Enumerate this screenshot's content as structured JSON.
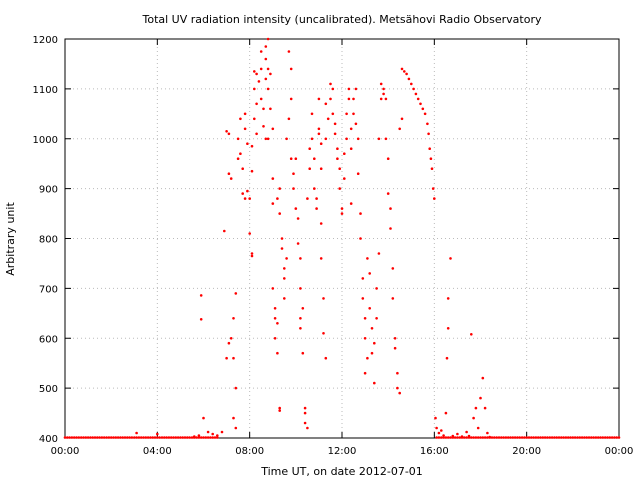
{
  "chart_data": {
    "type": "scatter",
    "title": "Total UV radiation intensity (uncalibrated). Metsähovi Radio Observatory",
    "xlabel": "Time UT, on date 2012-07-01",
    "ylabel": "Arbitrary unit",
    "xlim": [
      0,
      24
    ],
    "ylim": [
      400,
      1200
    ],
    "x_ticks": [
      0,
      4,
      8,
      12,
      16,
      20,
      24
    ],
    "x_tick_labels": [
      "00:00",
      "04:00",
      "08:00",
      "12:00",
      "16:00",
      "20:00",
      "00:00"
    ],
    "y_ticks": [
      400,
      500,
      600,
      700,
      800,
      900,
      1000,
      1100,
      1200
    ],
    "y_tick_labels": [
      "400",
      "500",
      "600",
      "700",
      "800",
      "900",
      "1000",
      "1100",
      "1200"
    ],
    "grid": true,
    "series_color": "#ff0000",
    "series": [
      {
        "points": [
          [
            3.1,
            410
          ],
          [
            4.0,
            408
          ],
          [
            5.6,
            403
          ],
          [
            5.8,
            405
          ],
          [
            5.9,
            638
          ],
          [
            5.9,
            686
          ],
          [
            6.0,
            440
          ],
          [
            6.2,
            412
          ],
          [
            6.4,
            408
          ],
          [
            6.6,
            405
          ],
          [
            6.8,
            412
          ],
          [
            6.9,
            815
          ],
          [
            7.0,
            1015
          ],
          [
            7.1,
            1010
          ],
          [
            7.0,
            560
          ],
          [
            7.1,
            590
          ],
          [
            7.2,
            600
          ],
          [
            7.1,
            930
          ],
          [
            7.2,
            920
          ],
          [
            7.3,
            560
          ],
          [
            7.3,
            640
          ],
          [
            7.4,
            690
          ],
          [
            7.4,
            500
          ],
          [
            7.3,
            440
          ],
          [
            7.4,
            420
          ],
          [
            7.5,
            1000
          ],
          [
            7.5,
            960
          ],
          [
            7.6,
            970
          ],
          [
            7.6,
            1040
          ],
          [
            7.7,
            890
          ],
          [
            7.7,
            940
          ],
          [
            7.8,
            880
          ],
          [
            7.8,
            1020
          ],
          [
            7.8,
            1050
          ],
          [
            7.9,
            990
          ],
          [
            7.9,
            895
          ],
          [
            8.0,
            880
          ],
          [
            8.0,
            810
          ],
          [
            8.1,
            770
          ],
          [
            8.1,
            765
          ],
          [
            8.1,
            935
          ],
          [
            8.1,
            985
          ],
          [
            8.2,
            1040
          ],
          [
            8.2,
            1100
          ],
          [
            8.2,
            1135
          ],
          [
            8.3,
            1130
          ],
          [
            8.3,
            1070
          ],
          [
            8.3,
            1010
          ],
          [
            8.4,
            1115
          ],
          [
            8.5,
            1175
          ],
          [
            8.5,
            1140
          ],
          [
            8.5,
            1080
          ],
          [
            8.6,
            1060
          ],
          [
            8.6,
            1025
          ],
          [
            8.7,
            1185
          ],
          [
            8.7,
            1160
          ],
          [
            8.7,
            1120
          ],
          [
            8.7,
            1000
          ],
          [
            8.8,
            1200
          ],
          [
            8.8,
            1140
          ],
          [
            8.8,
            1100
          ],
          [
            8.8,
            1000
          ],
          [
            8.9,
            1130
          ],
          [
            8.9,
            1060
          ],
          [
            9.0,
            1020
          ],
          [
            9.0,
            920
          ],
          [
            9.0,
            870
          ],
          [
            9.0,
            700
          ],
          [
            9.1,
            660
          ],
          [
            9.1,
            640
          ],
          [
            9.1,
            600
          ],
          [
            9.2,
            570
          ],
          [
            9.2,
            630
          ],
          [
            9.3,
            460
          ],
          [
            9.3,
            455
          ],
          [
            9.2,
            880
          ],
          [
            9.3,
            900
          ],
          [
            9.3,
            850
          ],
          [
            9.4,
            800
          ],
          [
            9.4,
            780
          ],
          [
            9.5,
            680
          ],
          [
            9.5,
            720
          ],
          [
            9.5,
            740
          ],
          [
            9.6,
            760
          ],
          [
            9.6,
            1000
          ],
          [
            9.7,
            1040
          ],
          [
            9.7,
            1175
          ],
          [
            9.8,
            1140
          ],
          [
            9.8,
            1080
          ],
          [
            9.8,
            960
          ],
          [
            9.9,
            930
          ],
          [
            9.9,
            900
          ],
          [
            10.0,
            960
          ],
          [
            10.0,
            860
          ],
          [
            10.1,
            840
          ],
          [
            10.1,
            790
          ],
          [
            10.2,
            760
          ],
          [
            10.2,
            700
          ],
          [
            10.2,
            640
          ],
          [
            10.2,
            620
          ],
          [
            10.3,
            570
          ],
          [
            10.3,
            660
          ],
          [
            10.4,
            450
          ],
          [
            10.4,
            460
          ],
          [
            10.4,
            430
          ],
          [
            10.5,
            420
          ],
          [
            10.5,
            880
          ],
          [
            10.6,
            940
          ],
          [
            10.6,
            980
          ],
          [
            10.7,
            1050
          ],
          [
            10.7,
            1000
          ],
          [
            10.8,
            960
          ],
          [
            10.8,
            900
          ],
          [
            10.9,
            880
          ],
          [
            10.9,
            860
          ],
          [
            11.0,
            1020
          ],
          [
            11.0,
            1080
          ],
          [
            11.0,
            1010
          ],
          [
            11.1,
            990
          ],
          [
            11.1,
            940
          ],
          [
            11.1,
            830
          ],
          [
            11.1,
            760
          ],
          [
            11.2,
            680
          ],
          [
            11.2,
            610
          ],
          [
            11.3,
            560
          ],
          [
            11.3,
            1000
          ],
          [
            11.3,
            1070
          ],
          [
            11.4,
            1040
          ],
          [
            11.5,
            1080
          ],
          [
            11.5,
            1110
          ],
          [
            11.6,
            1100
          ],
          [
            11.6,
            1050
          ],
          [
            11.7,
            1030
          ],
          [
            11.7,
            1010
          ],
          [
            11.8,
            980
          ],
          [
            11.8,
            960
          ],
          [
            11.9,
            940
          ],
          [
            11.9,
            900
          ],
          [
            12.0,
            850
          ],
          [
            12.0,
            860
          ],
          [
            12.1,
            970
          ],
          [
            12.1,
            920
          ],
          [
            12.2,
            1000
          ],
          [
            12.2,
            1050
          ],
          [
            12.3,
            1080
          ],
          [
            12.3,
            1100
          ],
          [
            12.4,
            1020
          ],
          [
            12.4,
            980
          ],
          [
            12.4,
            870
          ],
          [
            12.5,
            1050
          ],
          [
            12.5,
            1080
          ],
          [
            12.6,
            1100
          ],
          [
            12.6,
            1030
          ],
          [
            12.7,
            1000
          ],
          [
            12.7,
            930
          ],
          [
            12.8,
            850
          ],
          [
            12.8,
            800
          ],
          [
            12.9,
            720
          ],
          [
            12.9,
            680
          ],
          [
            13.0,
            640
          ],
          [
            13.0,
            600
          ],
          [
            13.0,
            530
          ],
          [
            13.1,
            560
          ],
          [
            13.1,
            760
          ],
          [
            13.2,
            730
          ],
          [
            13.2,
            660
          ],
          [
            13.3,
            620
          ],
          [
            13.3,
            570
          ],
          [
            13.4,
            510
          ],
          [
            13.4,
            590
          ],
          [
            13.5,
            640
          ],
          [
            13.5,
            700
          ],
          [
            13.6,
            770
          ],
          [
            13.6,
            1000
          ],
          [
            13.7,
            1080
          ],
          [
            13.7,
            1110
          ],
          [
            13.8,
            1100
          ],
          [
            13.8,
            1090
          ],
          [
            13.9,
            1080
          ],
          [
            13.9,
            1000
          ],
          [
            14.0,
            960
          ],
          [
            14.0,
            890
          ],
          [
            14.1,
            860
          ],
          [
            14.1,
            820
          ],
          [
            14.2,
            740
          ],
          [
            14.2,
            680
          ],
          [
            14.3,
            600
          ],
          [
            14.3,
            580
          ],
          [
            14.4,
            530
          ],
          [
            14.4,
            500
          ],
          [
            14.5,
            490
          ],
          [
            14.5,
            1020
          ],
          [
            14.6,
            1040
          ],
          [
            14.6,
            1140
          ],
          [
            14.7,
            1135
          ],
          [
            14.8,
            1130
          ],
          [
            14.9,
            1120
          ],
          [
            15.0,
            1110
          ],
          [
            15.1,
            1100
          ],
          [
            15.2,
            1090
          ],
          [
            15.3,
            1080
          ],
          [
            15.4,
            1070
          ],
          [
            15.5,
            1060
          ],
          [
            15.6,
            1050
          ],
          [
            15.7,
            1030
          ],
          [
            15.75,
            1010
          ],
          [
            15.8,
            980
          ],
          [
            15.85,
            960
          ],
          [
            15.9,
            940
          ],
          [
            15.95,
            900
          ],
          [
            16.0,
            880
          ],
          [
            16.05,
            440
          ],
          [
            16.1,
            420
          ],
          [
            16.2,
            410
          ],
          [
            16.3,
            415
          ],
          [
            16.4,
            405
          ],
          [
            16.5,
            450
          ],
          [
            16.55,
            560
          ],
          [
            16.6,
            620
          ],
          [
            16.6,
            680
          ],
          [
            16.7,
            760
          ],
          [
            16.8,
            404
          ],
          [
            17.0,
            408
          ],
          [
            17.2,
            403
          ],
          [
            17.4,
            412
          ],
          [
            17.5,
            404
          ],
          [
            17.6,
            608
          ],
          [
            17.7,
            440
          ],
          [
            17.8,
            460
          ],
          [
            17.9,
            420
          ],
          [
            18.0,
            480
          ],
          [
            18.1,
            520
          ],
          [
            18.2,
            460
          ],
          [
            18.3,
            410
          ],
          [
            18.4,
            402
          ]
        ]
      }
    ]
  }
}
